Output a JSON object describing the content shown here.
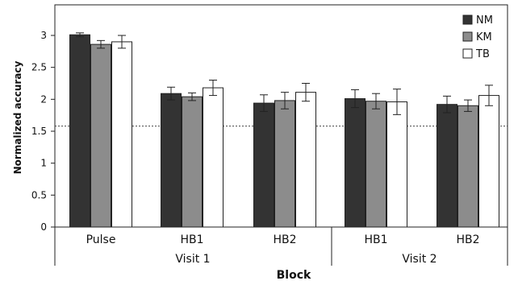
{
  "chart_data": {
    "type": "bar",
    "ylabel": "Normalized accuracy",
    "xlabel": "Block",
    "ylim": [
      0,
      3.3
    ],
    "yticks": [
      "0",
      "0.5",
      "1",
      "1.5",
      "2",
      "2.5",
      "3"
    ],
    "reference_line": 1.58,
    "categories": [
      "Pulse",
      "HB1",
      "HB2",
      "HB1",
      "HB2"
    ],
    "groups": [
      {
        "label": "Visit 1",
        "categories": [
          "Pulse",
          "HB1",
          "HB2"
        ]
      },
      {
        "label": "Visit 2",
        "categories": [
          "HB1",
          "HB2"
        ]
      }
    ],
    "series": [
      {
        "name": "NM",
        "color": "#333333",
        "values": [
          3.01,
          2.09,
          1.94,
          2.01,
          1.92
        ],
        "errors": [
          0.03,
          0.1,
          0.13,
          0.14,
          0.13
        ]
      },
      {
        "name": "KM",
        "color": "#8c8c8c",
        "values": [
          2.86,
          2.04,
          1.98,
          1.97,
          1.9
        ],
        "errors": [
          0.06,
          0.06,
          0.13,
          0.12,
          0.09
        ]
      },
      {
        "name": "TB",
        "color": "#ffffff",
        "values": [
          2.9,
          2.18,
          2.11,
          1.96,
          2.06
        ],
        "errors": [
          0.1,
          0.12,
          0.14,
          0.2,
          0.16
        ]
      }
    ],
    "legend_position": "top-right",
    "grid": false
  }
}
